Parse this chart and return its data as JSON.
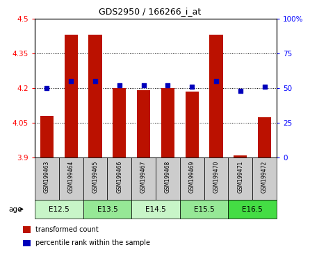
{
  "title": "GDS2950 / 166266_i_at",
  "samples": [
    "GSM199463",
    "GSM199464",
    "GSM199465",
    "GSM199466",
    "GSM199467",
    "GSM199468",
    "GSM199469",
    "GSM199470",
    "GSM199471",
    "GSM199472"
  ],
  "bar_values": [
    4.08,
    4.43,
    4.43,
    4.2,
    4.19,
    4.2,
    4.185,
    4.43,
    3.91,
    4.075
  ],
  "percentile_values": [
    50,
    55,
    55,
    52,
    52,
    52,
    51,
    55,
    48,
    51
  ],
  "ylim_left": [
    3.9,
    4.5
  ],
  "ylim_right": [
    0,
    100
  ],
  "yticks_left": [
    3.9,
    4.05,
    4.2,
    4.35,
    4.5
  ],
  "yticks_right": [
    0,
    25,
    50,
    75,
    100
  ],
  "ytick_labels_left": [
    "3.9",
    "4.05",
    "4.2",
    "4.35",
    "4.5"
  ],
  "ytick_labels_right": [
    "0",
    "25",
    "50",
    "75",
    "100%"
  ],
  "groups": [
    {
      "label": "E12.5",
      "samples": [
        0,
        1
      ],
      "color": "#c8f5c8"
    },
    {
      "label": "E13.5",
      "samples": [
        2,
        3
      ],
      "color": "#96e896"
    },
    {
      "label": "E14.5",
      "samples": [
        4,
        5
      ],
      "color": "#c8f5c8"
    },
    {
      "label": "E15.5",
      "samples": [
        6,
        7
      ],
      "color": "#96e896"
    },
    {
      "label": "E16.5",
      "samples": [
        8,
        9
      ],
      "color": "#44dd44"
    }
  ],
  "bar_color": "#bb1100",
  "dot_color": "#0000bb",
  "bg_color": "#ffffff",
  "sample_row_color": "#cccccc",
  "legend_items": [
    {
      "label": "transformed count",
      "color": "#bb1100"
    },
    {
      "label": "percentile rank within the sample",
      "color": "#0000bb"
    }
  ]
}
